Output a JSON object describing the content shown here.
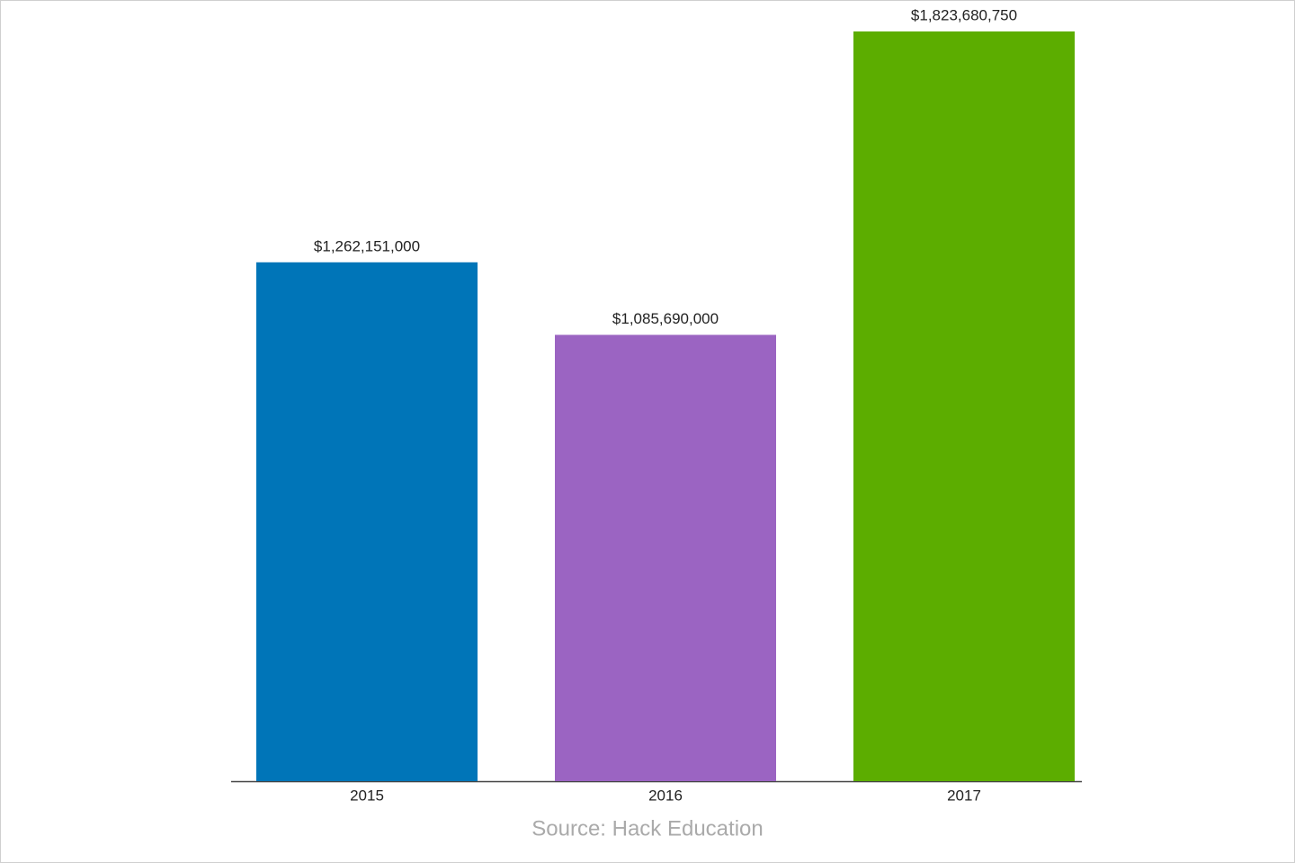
{
  "chart_data": {
    "type": "bar",
    "categories": [
      "2015",
      "2016",
      "2017"
    ],
    "values": [
      1262151000,
      1085690000,
      1823680750
    ],
    "value_labels": [
      "$1,262,151,000",
      "$1,085,690,000",
      "$1,823,680,750"
    ],
    "colors": [
      "#0075b8",
      "#9b64c2",
      "#5cad00"
    ],
    "source": "Source: Hack Education"
  }
}
